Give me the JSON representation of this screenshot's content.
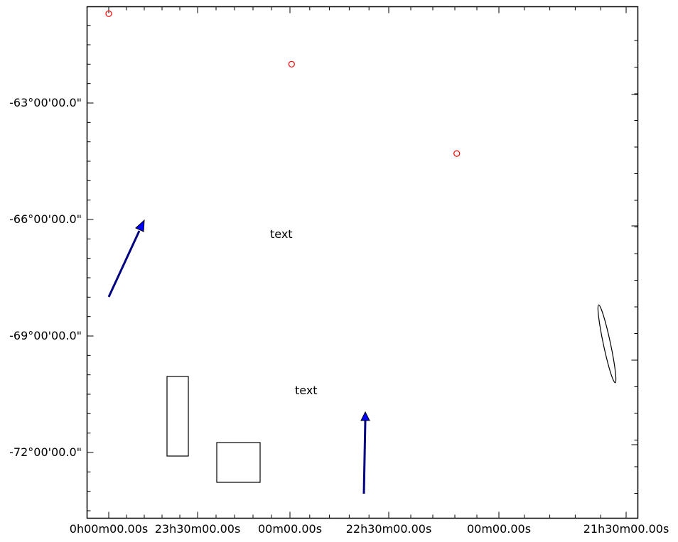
{
  "chart_data": {
    "type": "scatter",
    "title": "",
    "xlabel": "",
    "ylabel": "",
    "x_tick_labels": [
      "0h00m00.00s",
      "23h30m00.00s",
      "00m00.00s",
      "22h30m00.00s",
      "00m00.00s",
      "21h30m00.00s"
    ],
    "y_tick_labels": [
      "-63°00'00.0\"",
      "-66°00'00.0\"",
      "-69°00'00.0\"",
      "-72°00'00.0\""
    ],
    "y_tick_values": [
      -63,
      -66,
      -69,
      -72
    ],
    "points": [
      {
        "ra": "0h00m",
        "dec": -60.7
      },
      {
        "ra": "22h58m",
        "dec": -62.0
      },
      {
        "ra": "22h02m",
        "dec": -64.3
      }
    ],
    "annotations": [
      {
        "kind": "text",
        "text": "text"
      },
      {
        "kind": "text",
        "text": "text"
      }
    ],
    "colors": {
      "marker": "#ff0000",
      "arrow_fill": "#0000ff",
      "arrow_edge": "#000080",
      "axes": "#000000"
    },
    "grid": false
  }
}
